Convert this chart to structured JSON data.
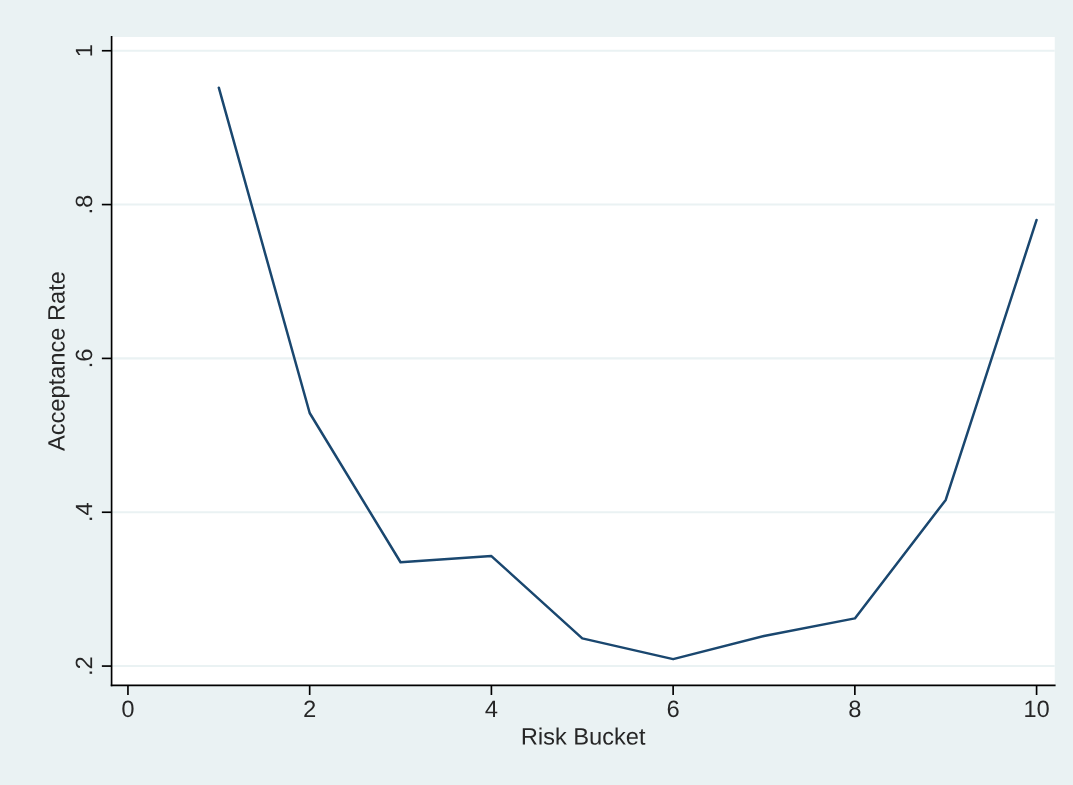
{
  "chart_data": {
    "type": "line",
    "xlabel": "Risk Bucket",
    "ylabel": "Acceptance Rate",
    "x": [
      1,
      2,
      3,
      4,
      5,
      6,
      7,
      8,
      9,
      10
    ],
    "series": [
      {
        "color": "#1a476f",
        "values": [
          0.952,
          0.529,
          0.335,
          0.343,
          0.236,
          0.209,
          0.239,
          0.262,
          0.416,
          0.78
        ]
      }
    ],
    "xlim": [
      -0.18,
      10.2
    ],
    "ylim": [
      0.175,
      1.018
    ],
    "xticks": [
      0,
      2,
      4,
      6,
      8,
      10
    ],
    "yticks": [
      {
        "value": 0.2,
        "label": ".2"
      },
      {
        "value": 0.4,
        "label": ".4"
      },
      {
        "value": 0.6,
        "label": ".6"
      },
      {
        "value": 0.8,
        "label": ".8"
      },
      {
        "value": 1,
        "label": "1"
      }
    ],
    "grid": "y",
    "legend": false
  }
}
